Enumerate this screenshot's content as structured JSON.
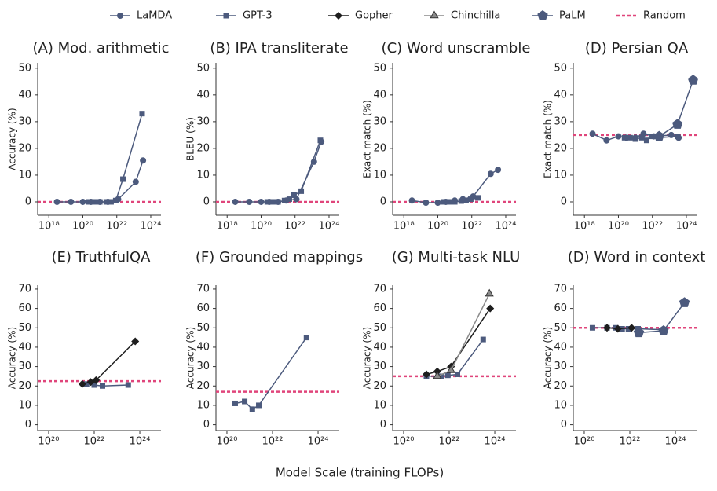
{
  "legend": [
    {
      "name": "LaMDA",
      "color": "#4c5a7d",
      "marker": "circle"
    },
    {
      "name": "GPT-3",
      "color": "#4c5a7d",
      "marker": "square"
    },
    {
      "name": "Gopher",
      "color": "#1e1e1e",
      "marker": "diamond"
    },
    {
      "name": "Chinchilla",
      "color": "#8a8a8a",
      "marker": "triangle"
    },
    {
      "name": "PaLM",
      "color": "#4c5a7d",
      "marker": "pentagon"
    },
    {
      "name": "Random",
      "color": "#e0457b",
      "marker": "dashed"
    }
  ],
  "xlabel": "Model Scale (training FLOPs)",
  "chart_data": [
    {
      "type": "line",
      "title": "(A) Mod. arithmetic",
      "ylabel": "Accuracy (%)",
      "xscale": "log",
      "xlim": [
        2.2e+17,
        4e+24
      ],
      "xticks": [
        {
          "value": 1e+18,
          "label": "10¹⁸"
        },
        {
          "value": 1e+20,
          "label": "10²⁰"
        },
        {
          "value": 1e+22,
          "label": "10²²"
        },
        {
          "value": 1e+24,
          "label": "10²⁴"
        }
      ],
      "ylim": [
        -5,
        52
      ],
      "yticks": [
        0,
        10,
        20,
        30,
        40,
        50
      ],
      "baseline": 0,
      "series": [
        {
          "name": "LaMDA",
          "x": [
            3e+18,
            2e+19,
            1e+20,
            3e+20,
            1e+21,
            3e+21,
            1.2e+22,
            1.3e+23,
            3.5e+23
          ],
          "values": [
            0,
            0,
            0,
            0,
            0,
            0,
            1,
            7.5,
            15.5
          ]
        },
        {
          "name": "GPT-3",
          "x": [
            2.3e+20,
            4.9e+20,
            1e+21,
            2.4e+21,
            4.6e+21,
            8.7e+21,
            2.3e+22,
            3.1e+23
          ],
          "values": [
            0,
            0,
            0,
            0,
            0,
            0.5,
            8.5,
            33
          ]
        }
      ]
    },
    {
      "type": "line",
      "title": "(B) IPA transliterate",
      "ylabel": "BLEU (%)",
      "xscale": "log",
      "xlim": [
        2.2e+17,
        4e+24
      ],
      "xticks": [
        {
          "value": 1e+18,
          "label": "10¹⁸"
        },
        {
          "value": 1e+20,
          "label": "10²⁰"
        },
        {
          "value": 1e+22,
          "label": "10²²"
        },
        {
          "value": 1e+24,
          "label": "10²⁴"
        }
      ],
      "ylim": [
        -5,
        52
      ],
      "yticks": [
        0,
        10,
        20,
        30,
        40,
        50
      ],
      "baseline": 0,
      "series": [
        {
          "name": "LaMDA",
          "x": [
            3e+18,
            2e+19,
            1e+20,
            3e+20,
            1e+21,
            3e+21,
            1.2e+22,
            1.3e+23,
            3.5e+23
          ],
          "values": [
            0,
            0,
            0,
            0,
            0,
            0.5,
            1,
            15,
            22.5
          ]
        },
        {
          "name": "GPT-3",
          "x": [
            2.3e+20,
            4.9e+20,
            1e+21,
            2.4e+21,
            4.6e+21,
            8.7e+21,
            2.3e+22,
            3.1e+23
          ],
          "values": [
            0,
            0,
            0,
            0.5,
            1,
            2.5,
            4,
            23
          ]
        }
      ]
    },
    {
      "type": "line",
      "title": "(C) Word unscramble",
      "ylabel": "Exact match (%)",
      "xscale": "log",
      "xlim": [
        2.2e+17,
        4e+24
      ],
      "xticks": [
        {
          "value": 1e+18,
          "label": "10¹⁸"
        },
        {
          "value": 1e+20,
          "label": "10²⁰"
        },
        {
          "value": 1e+22,
          "label": "10²²"
        },
        {
          "value": 1e+24,
          "label": "10²⁴"
        }
      ],
      "ylim": [
        -5,
        52
      ],
      "yticks": [
        0,
        10,
        20,
        30,
        40,
        50
      ],
      "baseline": 0,
      "series": [
        {
          "name": "LaMDA",
          "x": [
            3e+18,
            2e+19,
            1e+20,
            3e+20,
            1e+21,
            3e+21,
            1.2e+22,
            1.3e+23,
            3.5e+23
          ],
          "values": [
            0.5,
            -0.3,
            -0.3,
            0,
            0.5,
            1,
            2,
            10.5,
            12
          ]
        },
        {
          "name": "GPT-3",
          "x": [
            2.3e+20,
            4.9e+20,
            1e+21,
            2.4e+21,
            4.6e+21,
            8.7e+21,
            2.3e+22
          ],
          "values": [
            0,
            0,
            0,
            0.3,
            0.5,
            1,
            1.5
          ]
        }
      ]
    },
    {
      "type": "line",
      "title": "(D) Persian QA",
      "ylabel": "Exact match (%)",
      "xscale": "log",
      "xlim": [
        2.2e+17,
        4e+24
      ],
      "xticks": [
        {
          "value": 1e+18,
          "label": "10¹⁸"
        },
        {
          "value": 1e+20,
          "label": "10²⁰"
        },
        {
          "value": 1e+22,
          "label": "10²²"
        },
        {
          "value": 1e+24,
          "label": "10²⁴"
        }
      ],
      "ylim": [
        -5,
        52
      ],
      "yticks": [
        0,
        10,
        20,
        30,
        40,
        50
      ],
      "baseline": 25,
      "series": [
        {
          "name": "LaMDA",
          "x": [
            3e+18,
            2e+19,
            1e+20,
            3e+20,
            1e+21,
            3e+21,
            1.2e+22,
            1.3e+23,
            3.5e+23
          ],
          "values": [
            25.5,
            23,
            24.5,
            24,
            24,
            25.5,
            24.5,
            25,
            24
          ]
        },
        {
          "name": "GPT-3",
          "x": [
            2.3e+20,
            4.9e+20,
            1e+21,
            2.4e+21,
            4.6e+21,
            8.7e+21,
            2.3e+22,
            3.1e+23
          ],
          "values": [
            24,
            24,
            23.5,
            24,
            23,
            24.5,
            24,
            24.5
          ]
        },
        {
          "name": "PaLM",
          "x": [
            2.5e+22,
            3e+23,
            2.5e+24
          ],
          "values": [
            24.5,
            29,
            45.5
          ]
        }
      ]
    },
    {
      "type": "line",
      "title": "(E) TruthfulQA",
      "ylabel": "Accuracy (%)",
      "xscale": "log",
      "xlim": [
        3.3e+19,
        8.5e+24
      ],
      "xticks": [
        {
          "value": 1e+20,
          "label": "10²⁰"
        },
        {
          "value": 1e+22,
          "label": "10²²"
        },
        {
          "value": 1e+24,
          "label": "10²⁴"
        }
      ],
      "ylim": [
        -3,
        72
      ],
      "yticks": [
        0,
        10,
        20,
        30,
        40,
        50,
        60,
        70
      ],
      "baseline": 22.5,
      "series": [
        {
          "name": "GPT-3",
          "x": [
            4.6e+21,
            1e+22,
            2.3e+22,
            3.1e+23
          ],
          "values": [
            21,
            20.5,
            20,
            20.5
          ]
        },
        {
          "name": "Gopher",
          "x": [
            3e+21,
            7e+21,
            1.2e+22,
            6.3e+23
          ],
          "values": [
            21,
            22,
            23,
            43
          ]
        }
      ]
    },
    {
      "type": "line",
      "title": "(F) Grounded mappings",
      "ylabel": "Accuracy (%)",
      "xscale": "log",
      "xlim": [
        3.3e+19,
        8.5e+24
      ],
      "xticks": [
        {
          "value": 1e+20,
          "label": "10²⁰"
        },
        {
          "value": 1e+22,
          "label": "10²²"
        },
        {
          "value": 1e+24,
          "label": "10²⁴"
        }
      ],
      "ylim": [
        -3,
        72
      ],
      "yticks": [
        0,
        10,
        20,
        30,
        40,
        50,
        60,
        70
      ],
      "baseline": 17,
      "series": [
        {
          "name": "GPT-3",
          "x": [
            2.3e+20,
            6e+20,
            1.3e+21,
            2.5e+21,
            3.1e+23
          ],
          "values": [
            11,
            12,
            8,
            10,
            45
          ]
        }
      ]
    },
    {
      "type": "line",
      "title": "(G) Multi-task NLU",
      "ylabel": "Accuracy (%)",
      "xscale": "log",
      "xlim": [
        3.3e+19,
        8.5e+24
      ],
      "xticks": [
        {
          "value": 1e+20,
          "label": "10²⁰"
        },
        {
          "value": 1e+22,
          "label": "10²²"
        },
        {
          "value": 1e+24,
          "label": "10²⁴"
        }
      ],
      "ylim": [
        -3,
        72
      ],
      "yticks": [
        0,
        10,
        20,
        30,
        40,
        50,
        60,
        70
      ],
      "baseline": 25,
      "series": [
        {
          "name": "GPT-3",
          "x": [
            1e+21,
            4.6e+21,
            8.7e+21,
            2.3e+22,
            3.1e+23
          ],
          "values": [
            25,
            25,
            25.5,
            26,
            44
          ]
        },
        {
          "name": "Gopher",
          "x": [
            1e+21,
            3e+21,
            1.2e+22,
            6.3e+23
          ],
          "values": [
            26,
            27.5,
            30,
            60
          ]
        },
        {
          "name": "Chinchilla",
          "x": [
            3e+21,
            1.2e+22,
            5.8e+23
          ],
          "values": [
            25,
            28,
            67.5
          ]
        }
      ]
    },
    {
      "type": "line",
      "title": "(D) Word in context",
      "ylabel": "Accuracy (%)",
      "xscale": "log",
      "xlim": [
        3.3e+19,
        8.5e+24
      ],
      "xticks": [
        {
          "value": 1e+20,
          "label": "10²⁰"
        },
        {
          "value": 1e+22,
          "label": "10²²"
        },
        {
          "value": 1e+24,
          "label": "10²⁴"
        }
      ],
      "ylim": [
        -3,
        72
      ],
      "yticks": [
        0,
        10,
        20,
        30,
        40,
        50,
        60,
        70
      ],
      "baseline": 50,
      "series": [
        {
          "name": "GPT-3",
          "x": [
            2.3e+20,
            1e+21,
            2.4e+21,
            4.6e+21,
            8.7e+21,
            2.3e+22,
            3.1e+23
          ],
          "values": [
            50,
            50,
            50,
            49.5,
            49.5,
            49.5,
            49
          ]
        },
        {
          "name": "Gopher",
          "x": [
            1e+21,
            3e+21,
            1.2e+22
          ],
          "values": [
            50,
            49.5,
            50
          ]
        },
        {
          "name": "PaLM",
          "x": [
            2.5e+22,
            3e+23,
            2.5e+24
          ],
          "values": [
            47.5,
            48.5,
            63
          ]
        }
      ]
    }
  ]
}
